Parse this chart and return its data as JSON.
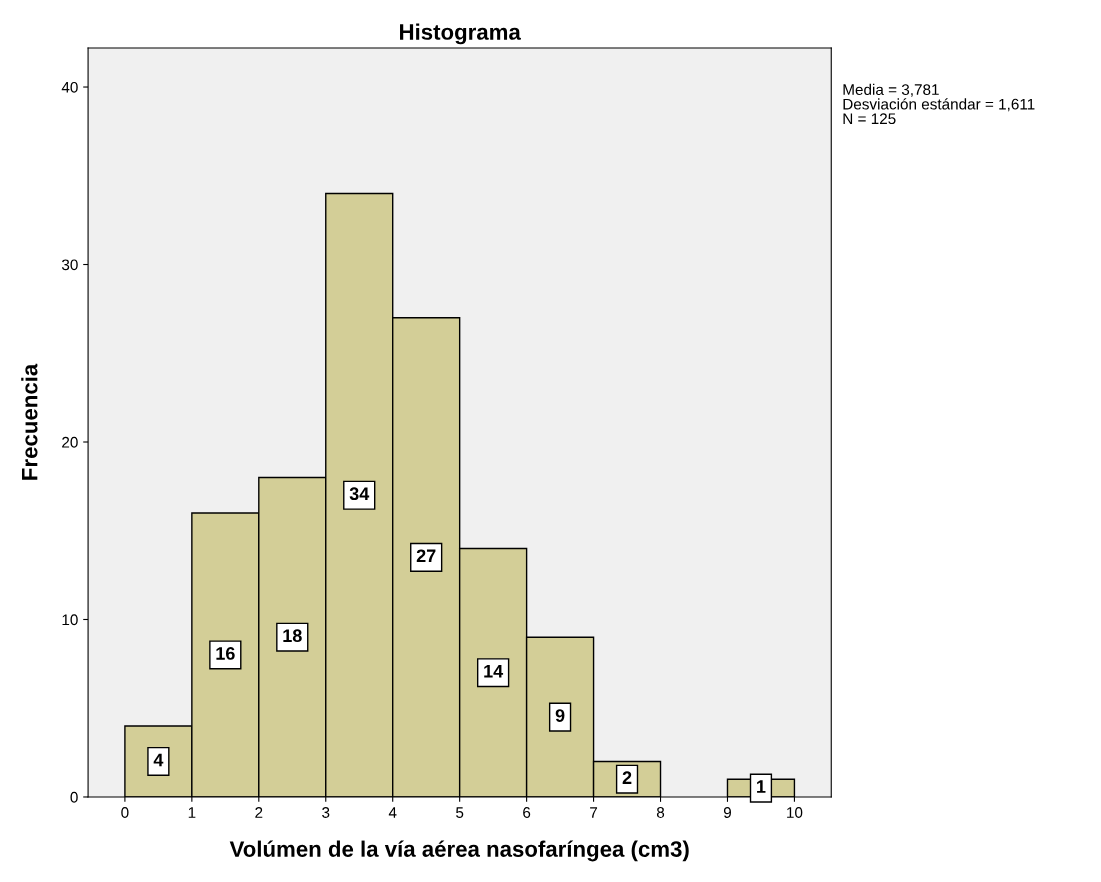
{
  "chart_data": {
    "type": "histogram",
    "title": "Histograma",
    "xlabel": "Volúmen de la vía aérea nasofaríngea (cm3)",
    "ylabel": "Frecuencia",
    "bins": [
      0,
      1,
      2,
      3,
      4,
      5,
      6,
      7,
      8,
      9,
      10
    ],
    "values": [
      4,
      16,
      18,
      34,
      27,
      14,
      9,
      2,
      0,
      1
    ],
    "value_labels": [
      "4",
      "16",
      "18",
      "34",
      "27",
      "14",
      "9",
      "2",
      null,
      "1"
    ],
    "color": "#d3ce97",
    "xlim": [
      -0.55,
      10.55
    ],
    "ylim": [
      0,
      42.2
    ],
    "xticks": [
      0,
      1,
      2,
      3,
      4,
      5,
      6,
      7,
      8,
      9,
      10
    ],
    "yticks": [
      0,
      10,
      20,
      30,
      40
    ],
    "grid": false,
    "annotations": [
      "Media = 3,781",
      "Desviación estándar = 1,611",
      "N = 125"
    ]
  }
}
